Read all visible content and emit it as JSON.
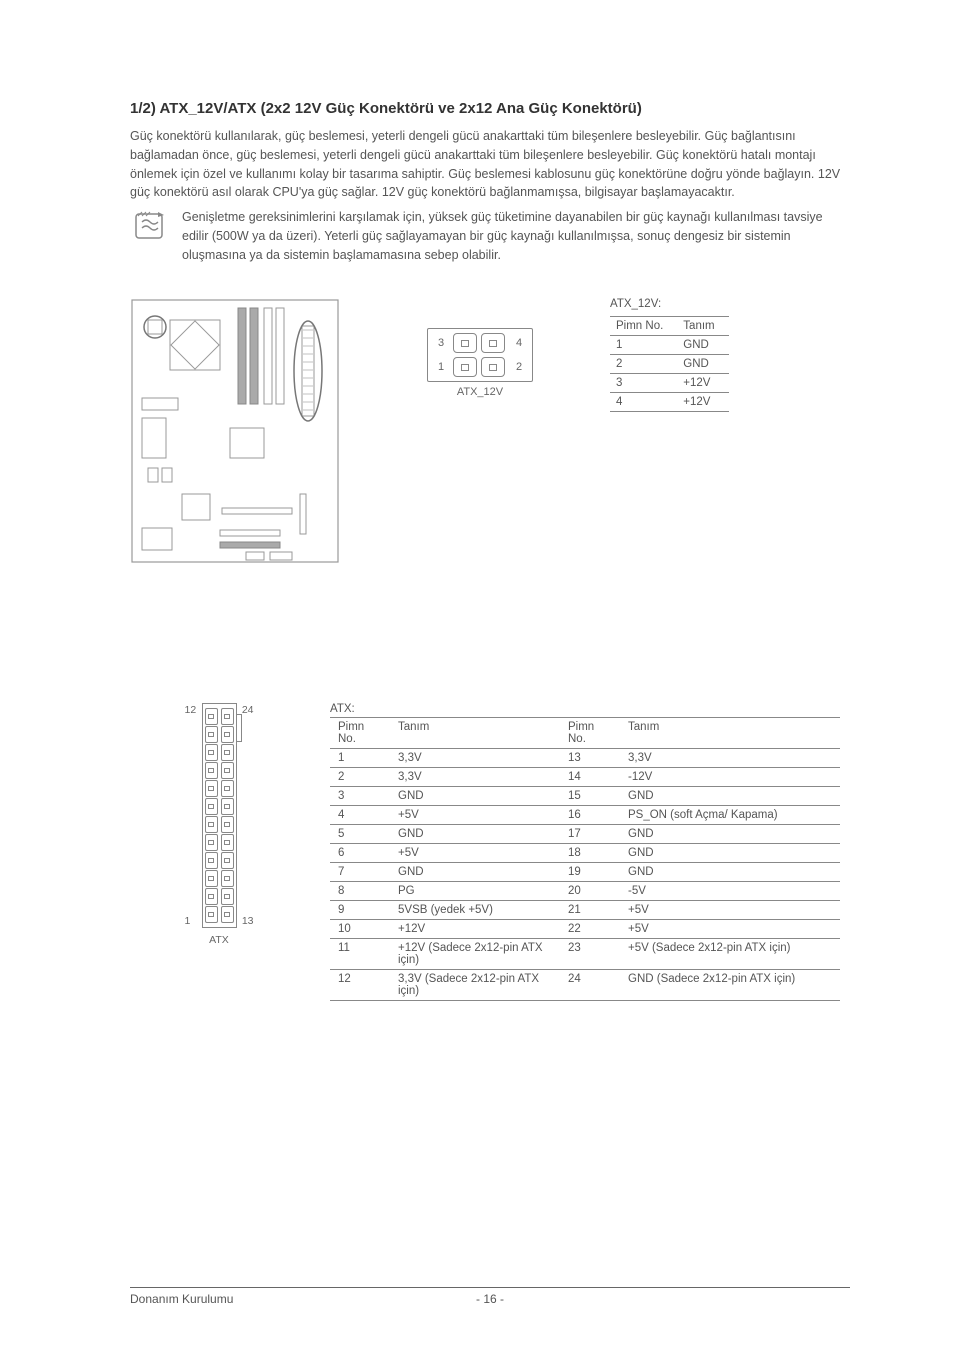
{
  "title": "1/2) ATX_12V/ATX (2x2 12V Güç Konektörü ve 2x12 Ana Güç Konektörü)",
  "para1": "Güç konektörü kullanılarak, güç beslemesi, yeterli dengeli gücü anakarttaki tüm bileşenlere besleyebilir. Güç bağlantısını bağlamadan önce, güç beslemesi, yeterli dengeli gücü anakarttaki tüm bileşenlere besleyebilir. Güç konektörü hatalı montajı önlemek için özel ve kullanımı kolay bir tasarıma sahiptir. Güç beslemesi kablosunu güç konektörüne doğru yönde bağlayın. 12V güç konektörü asıl olarak CPU'ya güç sağlar. 12V güç konektörü bağlanmamışsa, bilgisayar başlamayacaktır.",
  "note": "Genişletme gereksinimlerini karşılamak için, yüksek güç tüketimine dayanabilen bir güç kaynağı kullanılması tavsiye edilir (500W ya da üzeri). Yeterli güç sağlayamayan bir güç kaynağı kullanılmışsa, sonuç dengesiz bir sistemin oluşmasına ya da sistemin başlamamasına sebep olabilir.",
  "conn2x2": {
    "labels": {
      "p1": "1",
      "p2": "2",
      "p3": "3",
      "p4": "4"
    },
    "caption": "ATX_12V"
  },
  "atx12v_table": {
    "caption": "ATX_12V:",
    "headers": [
      "Pimn No.",
      "Tanım"
    ],
    "rows": [
      [
        "1",
        "GND"
      ],
      [
        "2",
        "GND"
      ],
      [
        "3",
        "+12V"
      ],
      [
        "4",
        "+12V"
      ]
    ]
  },
  "atx_conn": {
    "labels": {
      "tl": "12",
      "tr": "24",
      "bl": "1",
      "br": "13"
    },
    "caption": "ATX"
  },
  "atx_table": {
    "caption": "ATX:",
    "headers": [
      "Pimn No.",
      "Tanım",
      "Pimn No.",
      "Tanım"
    ],
    "rows": [
      [
        "1",
        "3,3V",
        "13",
        "3,3V"
      ],
      [
        "2",
        "3,3V",
        "14",
        "-12V"
      ],
      [
        "3",
        "GND",
        "15",
        "GND"
      ],
      [
        "4",
        "+5V",
        "16",
        "PS_ON (soft Açma/ Kapama)"
      ],
      [
        "5",
        "GND",
        "17",
        "GND"
      ],
      [
        "6",
        "+5V",
        "18",
        "GND"
      ],
      [
        "7",
        "GND",
        "19",
        "GND"
      ],
      [
        "8",
        "PG",
        "20",
        "-5V"
      ],
      [
        "9",
        "5VSB (yedek +5V)",
        "21",
        "+5V"
      ],
      [
        "10",
        "+12V",
        "22",
        "+5V"
      ],
      [
        "11",
        "+12V (Sadece 2x12-pin ATX için)",
        "23",
        "+5V (Sadece 2x12-pin ATX için)"
      ],
      [
        "12",
        "3,3V (Sadece 2x12-pin ATX için)",
        "24",
        "GND (Sadece 2x12-pin ATX için)"
      ]
    ]
  },
  "footer": {
    "left": "Donanım Kurulumu",
    "page": "- 16 -"
  },
  "colors": {
    "text": "#555555",
    "border": "#888888",
    "title": "#333333"
  }
}
